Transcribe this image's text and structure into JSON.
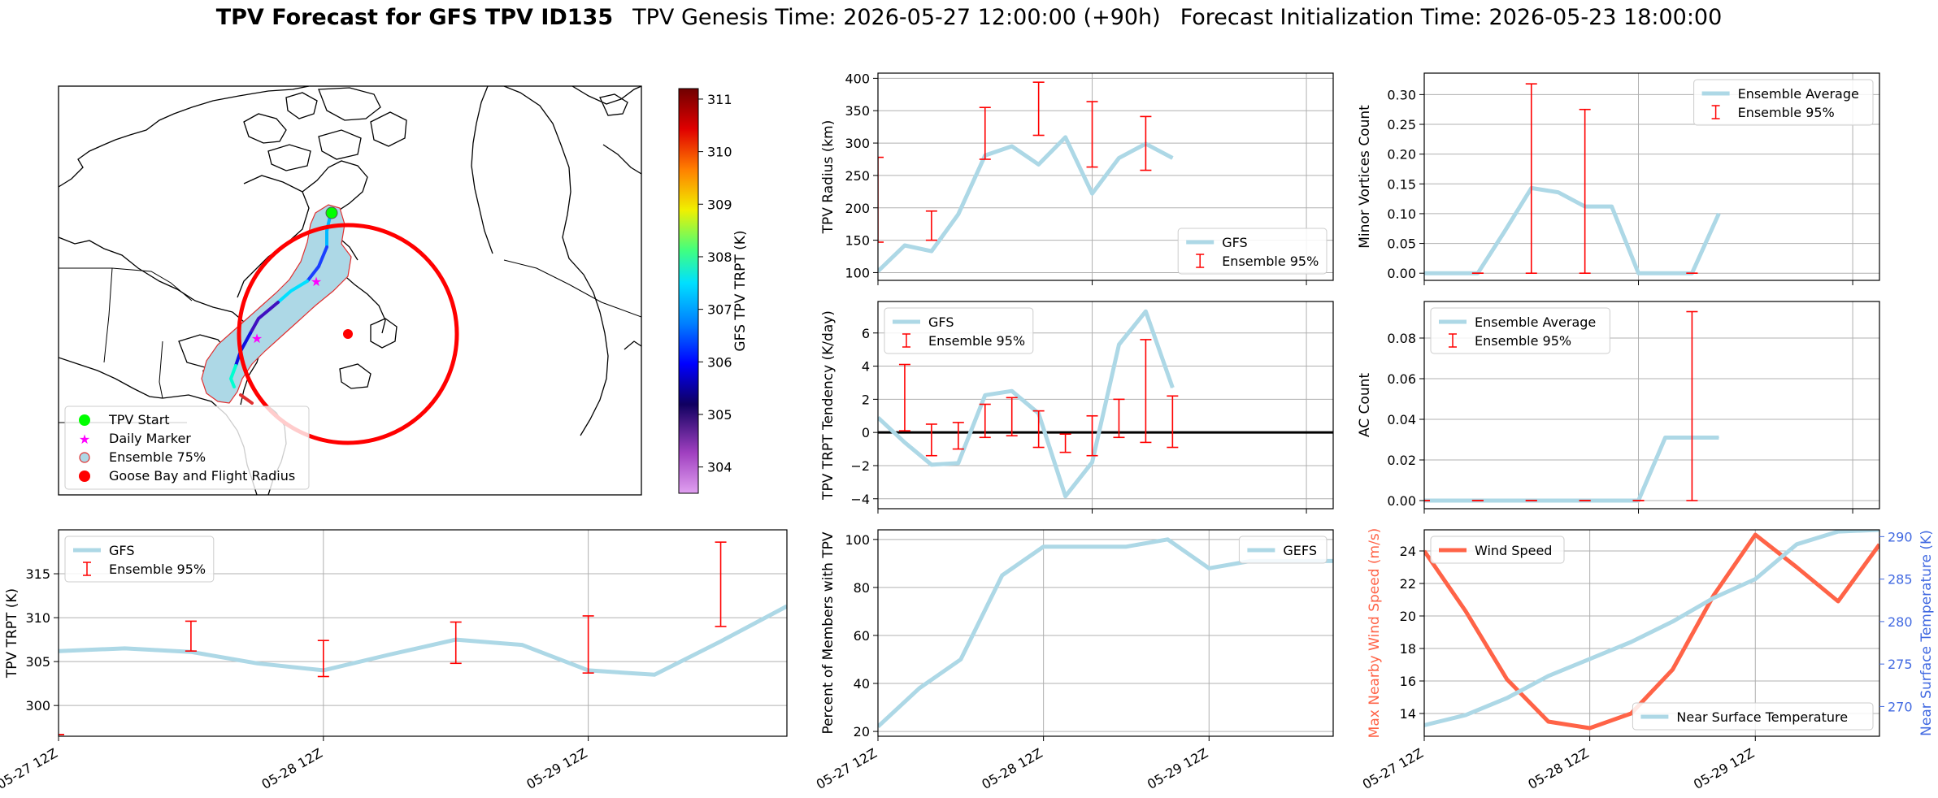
{
  "title": {
    "bold": "TPV Forecast for GFS TPV ID135",
    "genesis": "TPV Genesis Time: 2026-05-27 12:00:00 (+90h)",
    "init": "Forecast Initialization Time: 2026-05-23 18:00:00"
  },
  "colors": {
    "gfs_line": "#add8e6",
    "ensemble_bar": "#ff0000",
    "wind": "#ff6347",
    "temp_axis": "#4169e1",
    "flight_radius": "#ff0000",
    "tpv_start": "#00ff00",
    "daily_marker": "#ff00ff"
  },
  "map": {
    "colorbar": {
      "label": "GFS TPV TRPT (K)",
      "ticks": [
        304,
        305,
        306,
        307,
        308,
        309,
        310,
        311
      ],
      "min": 303.5,
      "max": 311.2
    },
    "legend": [
      "TPV Start",
      "Daily Marker",
      "Ensemble 75%",
      "Goose Bay and Flight Radius"
    ]
  },
  "chart_data": [
    {
      "id": "radius",
      "type": "line",
      "ylabel": "TPV Radius (km)",
      "xlim": [
        0,
        17
      ],
      "ylim": [
        88,
        408
      ],
      "yticks": [
        100,
        150,
        200,
        250,
        300,
        350,
        400
      ],
      "ytick_labels": [
        "100",
        "150",
        "200",
        "250",
        "300",
        "350",
        "400"
      ],
      "xticks": [
        0,
        8,
        16
      ],
      "series": [
        {
          "name": "GFS",
          "x": [
            0,
            1,
            2,
            3,
            4,
            5,
            6,
            7,
            8,
            9,
            10,
            11
          ],
          "y": [
            102,
            142,
            133,
            190,
            281,
            295,
            267,
            309,
            222,
            277,
            299,
            277
          ]
        }
      ],
      "ensemble": {
        "name": "Ensemble 95%",
        "x": [
          0,
          2,
          4,
          6,
          8,
          10
        ],
        "low": [
          147,
          150,
          275,
          312,
          263,
          258
        ],
        "high": [
          278,
          195,
          355,
          394,
          364,
          341
        ]
      },
      "legend": "lower-right"
    },
    {
      "id": "minor",
      "type": "line",
      "ylabel": "Minor Vortices Count",
      "xlim": [
        0,
        17
      ],
      "ylim": [
        -0.012,
        0.336
      ],
      "yticks": [
        0,
        0.05,
        0.1,
        0.15,
        0.2,
        0.25,
        0.3
      ],
      "ytick_labels": [
        "0.00",
        "0.05",
        "0.10",
        "0.15",
        "0.20",
        "0.25",
        "0.30"
      ],
      "xticks": [
        0,
        8,
        16
      ],
      "series": [
        {
          "name": "Ensemble Average",
          "x": [
            0,
            1,
            2,
            3,
            4,
            5,
            6,
            7,
            8,
            9,
            10,
            11
          ],
          "y": [
            0,
            0,
            0,
            0.07,
            0.143,
            0.136,
            0.112,
            0.112,
            0,
            0,
            0,
            0.1
          ]
        }
      ],
      "ensemble": {
        "name": "Ensemble 95%",
        "x": [
          2,
          4,
          6,
          10
        ],
        "low": [
          0,
          0,
          0,
          0
        ],
        "high": [
          0,
          0.318,
          0.275,
          0
        ]
      },
      "legend": "upper-right"
    },
    {
      "id": "tendency",
      "type": "line",
      "ylabel": "TPV TRPT Tendency (K/day)",
      "xlim": [
        0,
        17
      ],
      "ylim": [
        -4.6,
        7.9
      ],
      "yticks": [
        -4,
        -2,
        0,
        2,
        4,
        6
      ],
      "ytick_labels": [
        "−4",
        "−2",
        "0",
        "2",
        "4",
        "6"
      ],
      "xticks": [
        0,
        8,
        16
      ],
      "zero_line": true,
      "series": [
        {
          "name": "GFS",
          "x": [
            0,
            1,
            2,
            3,
            4,
            5,
            6,
            7,
            8,
            9,
            10,
            11
          ],
          "y": [
            0.9,
            -0.6,
            -1.95,
            -1.85,
            2.25,
            2.5,
            1.15,
            -3.85,
            -1.8,
            5.3,
            7.3,
            2.7
          ]
        }
      ],
      "ensemble": {
        "name": "Ensemble 95%",
        "x": [
          1,
          2,
          3,
          4,
          5,
          6,
          7,
          8,
          9,
          10,
          11
        ],
        "low": [
          0.1,
          -1.4,
          -1.0,
          -0.3,
          -0.2,
          -0.9,
          -1.2,
          -1.4,
          -0.3,
          -0.6,
          -0.9
        ],
        "high": [
          4.1,
          0.5,
          0.6,
          1.7,
          2.1,
          1.3,
          -0.1,
          1.0,
          2.0,
          5.6,
          2.2
        ]
      },
      "legend": "upper-left"
    },
    {
      "id": "ac",
      "type": "line",
      "ylabel": "AC Count",
      "xlim": [
        0,
        17
      ],
      "ylim": [
        -0.004,
        0.098
      ],
      "yticks": [
        0,
        0.02,
        0.04,
        0.06,
        0.08
      ],
      "ytick_labels": [
        "0.00",
        "0.02",
        "0.04",
        "0.06",
        "0.08"
      ],
      "xticks": [
        0,
        8,
        16
      ],
      "series": [
        {
          "name": "Ensemble Average",
          "x": [
            0,
            1,
            2,
            3,
            4,
            5,
            6,
            7,
            8,
            9,
            10,
            11
          ],
          "y": [
            0,
            0,
            0,
            0,
            0,
            0,
            0,
            0,
            0,
            0.031,
            0.031,
            0.031
          ]
        }
      ],
      "ensemble": {
        "name": "Ensemble 95%",
        "x": [
          0,
          2,
          4,
          6,
          8,
          10
        ],
        "low": [
          0,
          0,
          0,
          0,
          0,
          0
        ],
        "high": [
          0,
          0,
          0,
          0,
          0,
          0.093
        ]
      },
      "legend": "upper-left"
    },
    {
      "id": "trpt",
      "type": "line",
      "ylabel": "TPV TRPT (K)",
      "xlim": [
        0,
        11
      ],
      "ylim": [
        296.5,
        320
      ],
      "yticks": [
        300,
        305,
        310,
        315
      ],
      "ytick_labels": [
        "300",
        "305",
        "310",
        "315"
      ],
      "xticks": [
        0,
        4,
        8
      ],
      "xtick_labels": [
        "05-27 12Z",
        "05-28 12Z",
        "05-29 12Z"
      ],
      "series": [
        {
          "name": "GFS",
          "x": [
            0,
            1,
            2,
            3,
            4,
            5,
            6,
            7,
            8,
            9,
            10,
            11
          ],
          "y": [
            306.2,
            306.5,
            306.1,
            304.8,
            304.0,
            305.8,
            307.5,
            306.9,
            304.0,
            303.5,
            307.3,
            311.3
          ]
        }
      ],
      "ensemble": {
        "name": "Ensemble 95%",
        "x": [
          0,
          2,
          4,
          6,
          8,
          10
        ],
        "low": [
          296.7,
          306.2,
          303.3,
          304.8,
          303.7,
          309.0
        ],
        "high": [
          296.7,
          309.6,
          307.4,
          309.5,
          310.2,
          318.6
        ]
      },
      "legend": "upper-left"
    },
    {
      "id": "percent",
      "type": "line",
      "ylabel": "Percent of Members with TPV",
      "xlim": [
        0,
        11
      ],
      "ylim": [
        18,
        104
      ],
      "yticks": [
        20,
        40,
        60,
        80,
        100
      ],
      "ytick_labels": [
        "20",
        "40",
        "60",
        "80",
        "100"
      ],
      "xticks": [
        0,
        4,
        8
      ],
      "xtick_labels": [
        "05-27 12Z",
        "05-28 12Z",
        "05-29 12Z"
      ],
      "series": [
        {
          "name": "GEFS",
          "x": [
            0,
            1,
            2,
            3,
            4,
            5,
            6,
            7,
            8,
            9,
            10,
            11
          ],
          "y": [
            22,
            38,
            50,
            85,
            97,
            97,
            97,
            100,
            88,
            91,
            91,
            91
          ]
        }
      ],
      "legend": "upper-right"
    },
    {
      "id": "wind",
      "type": "line",
      "ylabel": "Max Nearby Wind Speed (m/s)",
      "y2label": "Near Surface Temperature (K)",
      "xlim": [
        0,
        11
      ],
      "ylim": [
        12.6,
        25.3
      ],
      "yticks": [
        14,
        16,
        18,
        20,
        22,
        24
      ],
      "ytick_labels": [
        "14",
        "16",
        "18",
        "20",
        "22",
        "24"
      ],
      "y2lim": [
        266.5,
        290.8
      ],
      "y2ticks": [
        270,
        275,
        280,
        285,
        290
      ],
      "y2tick_labels": [
        "270",
        "275",
        "280",
        "285",
        "290"
      ],
      "xticks": [
        0,
        4,
        8
      ],
      "xtick_labels": [
        "05-27 12Z",
        "05-28 12Z",
        "05-29 12Z"
      ],
      "series": [
        {
          "name": "Wind Speed",
          "axis": "left",
          "x": [
            0,
            1,
            2,
            3,
            4,
            5,
            6,
            7,
            8,
            9,
            10,
            11
          ],
          "y": [
            24.0,
            20.3,
            16.1,
            13.5,
            13.1,
            14.0,
            16.7,
            21.3,
            25.0,
            23.0,
            20.9,
            24.4
          ]
        },
        {
          "name": "Near Surface Temperature",
          "axis": "right",
          "x": [
            0,
            1,
            2,
            3,
            4,
            5,
            6,
            7,
            8,
            9,
            10,
            11
          ],
          "y": [
            267.8,
            269.0,
            271.0,
            273.6,
            275.6,
            277.6,
            280.0,
            282.8,
            285.0,
            289.1,
            290.6,
            290.8
          ]
        }
      ],
      "legend": "upper-left / lower-right"
    }
  ]
}
